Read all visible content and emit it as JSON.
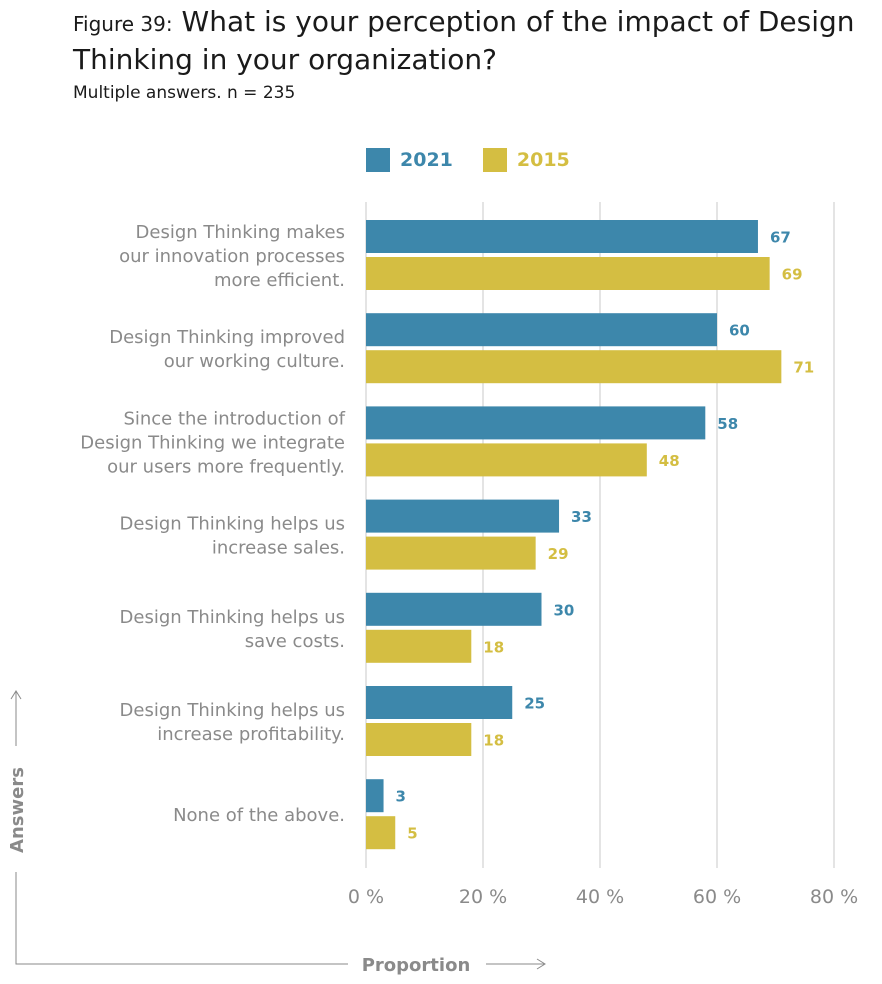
{
  "figure_label": "Figure 39:",
  "title": "What is your perception of the impact of Design Thinking in your organization?",
  "subtitle": "Multiple answers. n = 235",
  "colors": {
    "s2021": "#3d87ab",
    "s2015": "#d4be42",
    "label": "#8a8a8a",
    "grid": "#c8c8c8"
  },
  "chart_data": {
    "type": "bar",
    "orientation": "horizontal",
    "categories": [
      [
        "Design Thinking makes",
        "our innovation processes",
        "more efficient."
      ],
      [
        "Design Thinking improved",
        "our working culture."
      ],
      [
        "Since the introduction of",
        "Design Thinking we integrate",
        "our users more frequently."
      ],
      [
        "Design Thinking helps us",
        "increase sales."
      ],
      [
        "Design Thinking helps us",
        "save costs."
      ],
      [
        "Design Thinking helps us",
        "increase profitability."
      ],
      [
        "None of the above."
      ]
    ],
    "series": [
      {
        "name": "2021",
        "values": [
          67,
          60,
          58,
          33,
          30,
          25,
          3
        ]
      },
      {
        "name": "2015",
        "values": [
          69,
          71,
          48,
          29,
          18,
          18,
          5
        ]
      }
    ],
    "xlim": [
      0,
      80
    ],
    "xticks": [
      "0 %",
      "20 %",
      "40 %",
      "60 %",
      "80 %"
    ],
    "xlabel": "Proportion",
    "ylabel": "Answers",
    "legend_position": "top",
    "grid": true
  }
}
